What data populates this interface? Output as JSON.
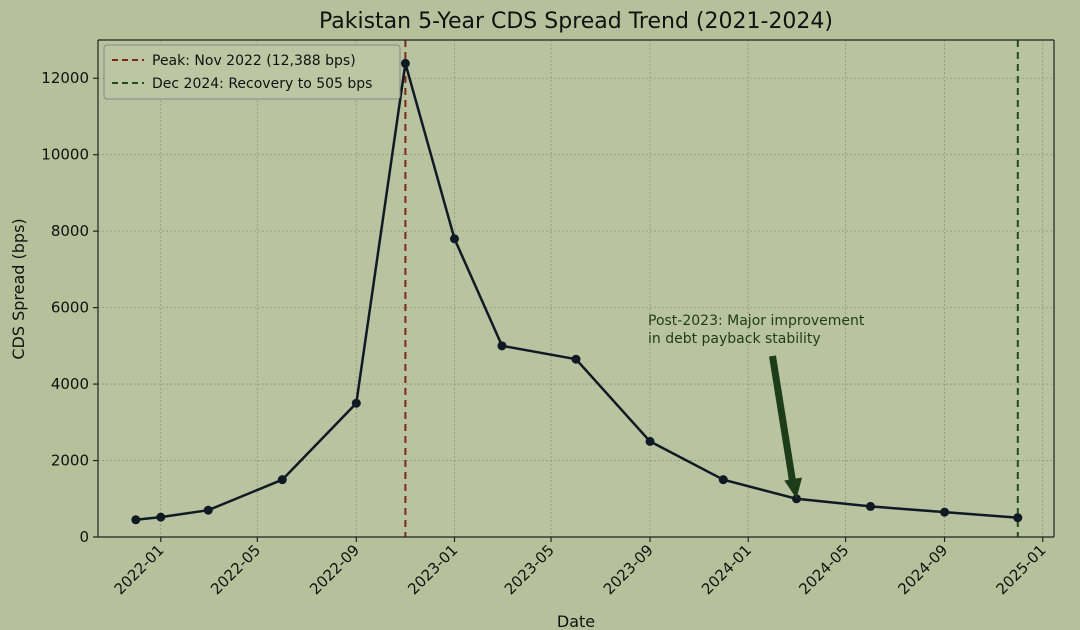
{
  "chart_data": {
    "type": "line",
    "title": "Pakistan 5-Year CDS Spread Trend (2021-2024)",
    "xlabel": "Date",
    "ylabel": "CDS Spread (bps)",
    "ylim": [
      0,
      13000
    ],
    "yticks": [
      0,
      2000,
      4000,
      6000,
      8000,
      10000,
      12000
    ],
    "xticks": [
      "2022-01",
      "2022-05",
      "2022-09",
      "2023-01",
      "2023-05",
      "2023-09",
      "2024-01",
      "2024-05",
      "2024-09",
      "2025-01"
    ],
    "xlim": [
      "2021-10-15",
      "2025-01-15"
    ],
    "grid": true,
    "legend_position": "top-left",
    "series": [
      {
        "color": "#0f1a24",
        "x": [
          "2021-12-01",
          "2022-01-01",
          "2022-03-01",
          "2022-06-01",
          "2022-09-01",
          "2022-11-01",
          "2023-01-01",
          "2023-03-01",
          "2023-06-01",
          "2023-09-01",
          "2023-12-01",
          "2024-03-01",
          "2024-06-01",
          "2024-09-01",
          "2024-12-01"
        ],
        "y": [
          450,
          520,
          700,
          1500,
          3500,
          12388,
          7800,
          5000,
          4650,
          2500,
          1500,
          1000,
          800,
          650,
          505
        ]
      }
    ],
    "reference_lines": [
      {
        "x": "2022-11-01",
        "label": "Peak: Nov 2022 (12,388 bps)",
        "color": "#7b2a16",
        "style": "dashed"
      },
      {
        "x": "2024-12-01",
        "label": "Dec 2024: Recovery to 505 bps",
        "color": "#1f4d1f",
        "style": "dashed"
      }
    ],
    "annotation": {
      "lines": [
        "Post-2023: Major improvement",
        "in debt payback stability"
      ],
      "target": {
        "x": "2024-03-01",
        "y": 1000
      },
      "color": "#1d3d18"
    }
  }
}
